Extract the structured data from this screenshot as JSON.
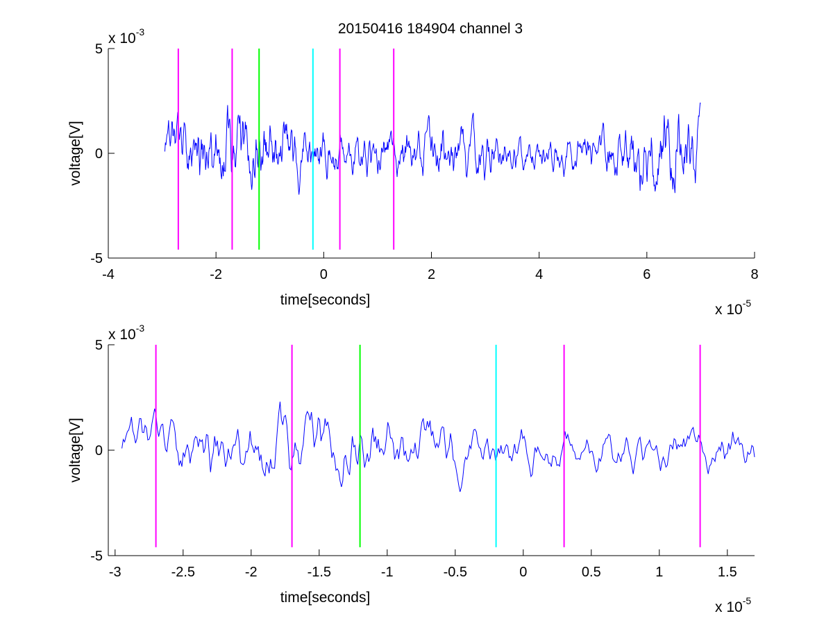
{
  "title": "20150416 184904 channel 3",
  "chart_data": [
    {
      "type": "line",
      "xlabel": "time[seconds]",
      "ylabel": "voltage[V]",
      "x_multiplier": {
        "base": "x 10",
        "exp": "-5"
      },
      "y_multiplier": {
        "base": "x 10",
        "exp": "-3"
      },
      "xlim": [
        -4,
        8
      ],
      "ylim": [
        -5,
        5
      ],
      "x_ticks": [
        "-4",
        "-2",
        "0",
        "2",
        "4",
        "6",
        "8"
      ],
      "x_tick_values": [
        -4,
        -2,
        0,
        2,
        4,
        6,
        8
      ],
      "y_ticks": [
        "-5",
        "0",
        "5"
      ],
      "y_tick_values": [
        -5,
        0,
        5
      ],
      "signal": {
        "color": "#0000ff",
        "x_range": [
          -2.95,
          7.0
        ],
        "sample_count": 1000
      },
      "markers": [
        {
          "x": -2.7,
          "color": "#ff00ff",
          "y_range": [
            -4.6,
            5
          ]
        },
        {
          "x": -1.7,
          "color": "#ff00ff",
          "y_range": [
            -4.6,
            5
          ]
        },
        {
          "x": -1.2,
          "color": "#00ff00",
          "y_range": [
            -4.6,
            5
          ]
        },
        {
          "x": -0.2,
          "color": "#00ffff",
          "y_range": [
            -4.6,
            5
          ]
        },
        {
          "x": 0.3,
          "color": "#ff00ff",
          "y_range": [
            -4.6,
            5
          ]
        },
        {
          "x": 1.3,
          "color": "#ff00ff",
          "y_range": [
            -4.6,
            5
          ]
        }
      ],
      "grid": false
    },
    {
      "type": "line",
      "xlabel": "time[seconds]",
      "ylabel": "voltage[V]",
      "x_multiplier": {
        "base": "x 10",
        "exp": "-5"
      },
      "y_multiplier": {
        "base": "x 10",
        "exp": "-3"
      },
      "xlim": [
        -3.05,
        1.7
      ],
      "ylim": [
        -5,
        5
      ],
      "x_ticks": [
        "-3",
        "-2.5",
        "-2",
        "-1.5",
        "-1",
        "-0.5",
        "0",
        "0.5",
        "1",
        "1.5"
      ],
      "x_tick_values": [
        -3,
        -2.5,
        -2,
        -1.5,
        -1,
        -0.5,
        0,
        0.5,
        1,
        1.5
      ],
      "y_ticks": [
        "-5",
        "0",
        "5"
      ],
      "y_tick_values": [
        -5,
        0,
        5
      ],
      "signal": {
        "color": "#0000ff",
        "x_range": [
          -2.95,
          1.7
        ],
        "sample_count": 465
      },
      "markers": [
        {
          "x": -2.7,
          "color": "#ff00ff",
          "y_range": [
            -4.6,
            5
          ]
        },
        {
          "x": -1.7,
          "color": "#ff00ff",
          "y_range": [
            -4.6,
            5
          ]
        },
        {
          "x": -1.2,
          "color": "#00ff00",
          "y_range": [
            -4.6,
            5
          ]
        },
        {
          "x": -0.2,
          "color": "#00ffff",
          "y_range": [
            -4.6,
            5
          ]
        },
        {
          "x": 0.3,
          "color": "#ff00ff",
          "y_range": [
            -4.6,
            5
          ]
        },
        {
          "x": 1.3,
          "color": "#ff00ff",
          "y_range": [
            -4.6,
            5
          ]
        }
      ],
      "grid": false
    }
  ]
}
